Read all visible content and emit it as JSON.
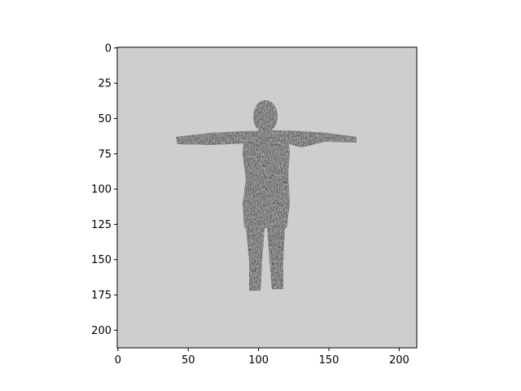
{
  "chart_data": {
    "type": "image",
    "title": "",
    "xlabel": "",
    "ylabel": "",
    "xlim": [
      0,
      213
    ],
    "ylim": [
      213,
      0
    ],
    "x_ticks": [
      0,
      50,
      100,
      150,
      200
    ],
    "y_ticks": [
      0,
      25,
      50,
      75,
      100,
      125,
      150,
      175,
      200
    ],
    "grid": false,
    "colormap": "gray",
    "background_value_color": "#cecece",
    "figure_color": "#5a5a5a",
    "image_content": "gray noise-textured human silhouette in T-pose"
  }
}
